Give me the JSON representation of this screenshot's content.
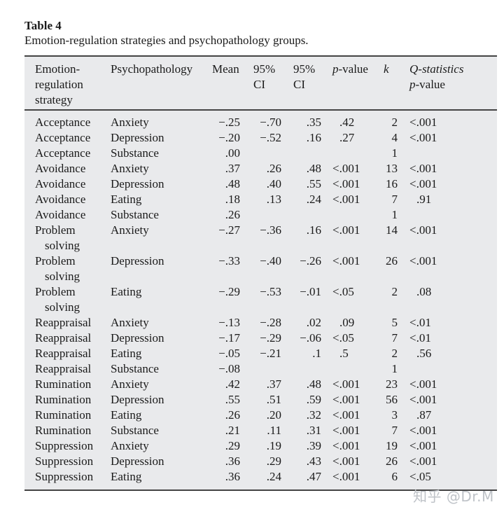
{
  "title": "Table 4",
  "caption": "Emotion-regulation strategies and psychopathology groups.",
  "headers": {
    "strategy": [
      "Emotion-",
      "regulation",
      "strategy"
    ],
    "psychopathology": "Psychopathology",
    "mean": "Mean",
    "ci_low": [
      "95%",
      "CI"
    ],
    "ci_high": [
      "95%",
      "CI"
    ],
    "p_value_italic": "p",
    "p_value_rest": "-value",
    "k": "k",
    "q_line1": "Q-statistics",
    "q_line2_italic": "p",
    "q_line2_rest": "-value"
  },
  "rows": [
    {
      "strategy": "Acceptance",
      "psych": "Anxiety",
      "mean": "−.25",
      "lo": "−.70",
      "hi": ".35",
      "p": ".42",
      "k": "2",
      "q": "<.001"
    },
    {
      "strategy": "Acceptance",
      "psych": "Depression",
      "mean": "−.20",
      "lo": "−.52",
      "hi": ".16",
      "p": ".27",
      "k": "4",
      "q": "<.001"
    },
    {
      "strategy": "Acceptance",
      "psych": "Substance",
      "mean": ".00",
      "lo": "",
      "hi": "",
      "p": "",
      "k": "1",
      "q": ""
    },
    {
      "strategy": "Avoidance",
      "psych": "Anxiety",
      "mean": ".37",
      "lo": ".26",
      "hi": ".48",
      "p": "<.001",
      "k": "13",
      "q": "<.001"
    },
    {
      "strategy": "Avoidance",
      "psych": "Depression",
      "mean": ".48",
      "lo": ".40",
      "hi": ".55",
      "p": "<.001",
      "k": "16",
      "q": "<.001"
    },
    {
      "strategy": "Avoidance",
      "psych": "Eating",
      "mean": ".18",
      "lo": ".13",
      "hi": ".24",
      "p": "<.001",
      "k": "7",
      "q": ".91"
    },
    {
      "strategy": "Avoidance",
      "psych": "Substance",
      "mean": ".26",
      "lo": "",
      "hi": "",
      "p": "",
      "k": "1",
      "q": ""
    },
    {
      "strategy": "Problem",
      "strategy2": "solving",
      "psych": "Anxiety",
      "mean": "−.27",
      "lo": "−.36",
      "hi": ".16",
      "p": "<.001",
      "k": "14",
      "q": "<.001"
    },
    {
      "strategy": "Problem",
      "strategy2": "solving",
      "psych": "Depression",
      "mean": "−.33",
      "lo": "−.40",
      "hi": "−.26",
      "p": "<.001",
      "k": "26",
      "q": "<.001"
    },
    {
      "strategy": "Problem",
      "strategy2": "solving",
      "psych": "Eating",
      "mean": "−.29",
      "lo": "−.53",
      "hi": "−.01",
      "p": "<.05",
      "k": "2",
      "q": ".08"
    },
    {
      "strategy": "Reappraisal",
      "psych": "Anxiety",
      "mean": "−.13",
      "lo": "−.28",
      "hi": ".02",
      "p": ".09",
      "k": "5",
      "q": "<.01"
    },
    {
      "strategy": "Reappraisal",
      "psych": "Depression",
      "mean": "−.17",
      "lo": "−.29",
      "hi": "−.06",
      "p": "<.05",
      "k": "7",
      "q": "<.01"
    },
    {
      "strategy": "Reappraisal",
      "psych": "Eating",
      "mean": "−.05",
      "lo": "−.21",
      "hi": ".1",
      "p": ".5",
      "k": "2",
      "q": ".56"
    },
    {
      "strategy": "Reappraisal",
      "psych": "Substance",
      "mean": "−.08",
      "lo": "",
      "hi": "",
      "p": "",
      "k": "1",
      "q": ""
    },
    {
      "strategy": "Rumination",
      "psych": "Anxiety",
      "mean": ".42",
      "lo": ".37",
      "hi": ".48",
      "p": "<.001",
      "k": "23",
      "q": "<.001"
    },
    {
      "strategy": "Rumination",
      "psych": "Depression",
      "mean": ".55",
      "lo": ".51",
      "hi": ".59",
      "p": "<.001",
      "k": "56",
      "q": "<.001"
    },
    {
      "strategy": "Rumination",
      "psych": "Eating",
      "mean": ".26",
      "lo": ".20",
      "hi": ".32",
      "p": "<.001",
      "k": "3",
      "q": ".87"
    },
    {
      "strategy": "Rumination",
      "psych": "Substance",
      "mean": ".21",
      "lo": ".11",
      "hi": ".31",
      "p": "<.001",
      "k": "7",
      "q": "<.001"
    },
    {
      "strategy": "Suppression",
      "psych": "Anxiety",
      "mean": ".29",
      "lo": ".19",
      "hi": ".39",
      "p": "<.001",
      "k": "19",
      "q": "<.001"
    },
    {
      "strategy": "Suppression",
      "psych": "Depression",
      "mean": ".36",
      "lo": ".29",
      "hi": ".43",
      "p": "<.001",
      "k": "26",
      "q": "<.001"
    },
    {
      "strategy": "Suppression",
      "psych": "Eating",
      "mean": ".36",
      "lo": ".24",
      "hi": ".47",
      "p": "<.001",
      "k": "6",
      "q": "<.05"
    }
  ],
  "watermark": "知乎 @Dr.M"
}
